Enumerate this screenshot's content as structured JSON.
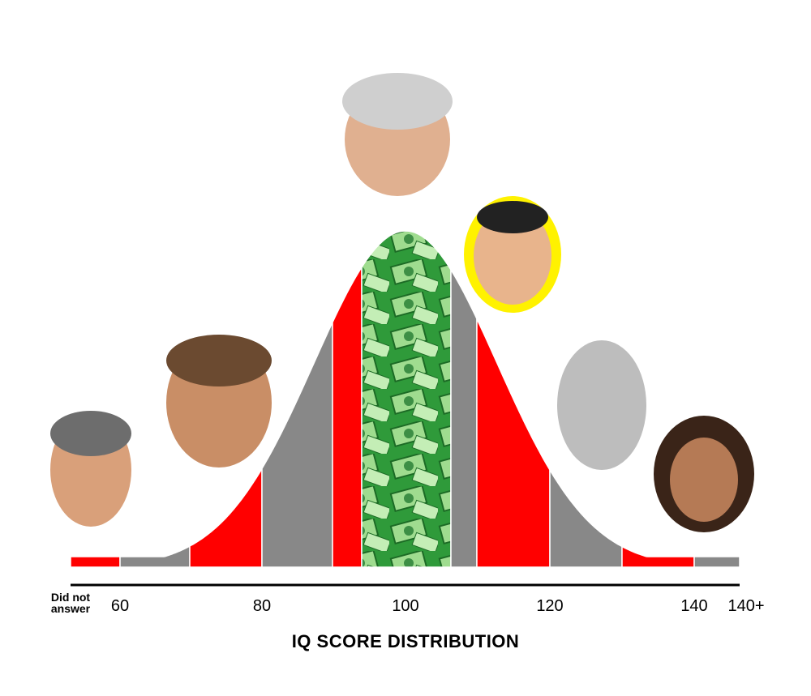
{
  "axis": {
    "title": "IQ SCORE DISTRIBUTION",
    "labels": [
      "Did not answer",
      "60",
      "80",
      "100",
      "120",
      "140",
      "140+"
    ]
  }
}
